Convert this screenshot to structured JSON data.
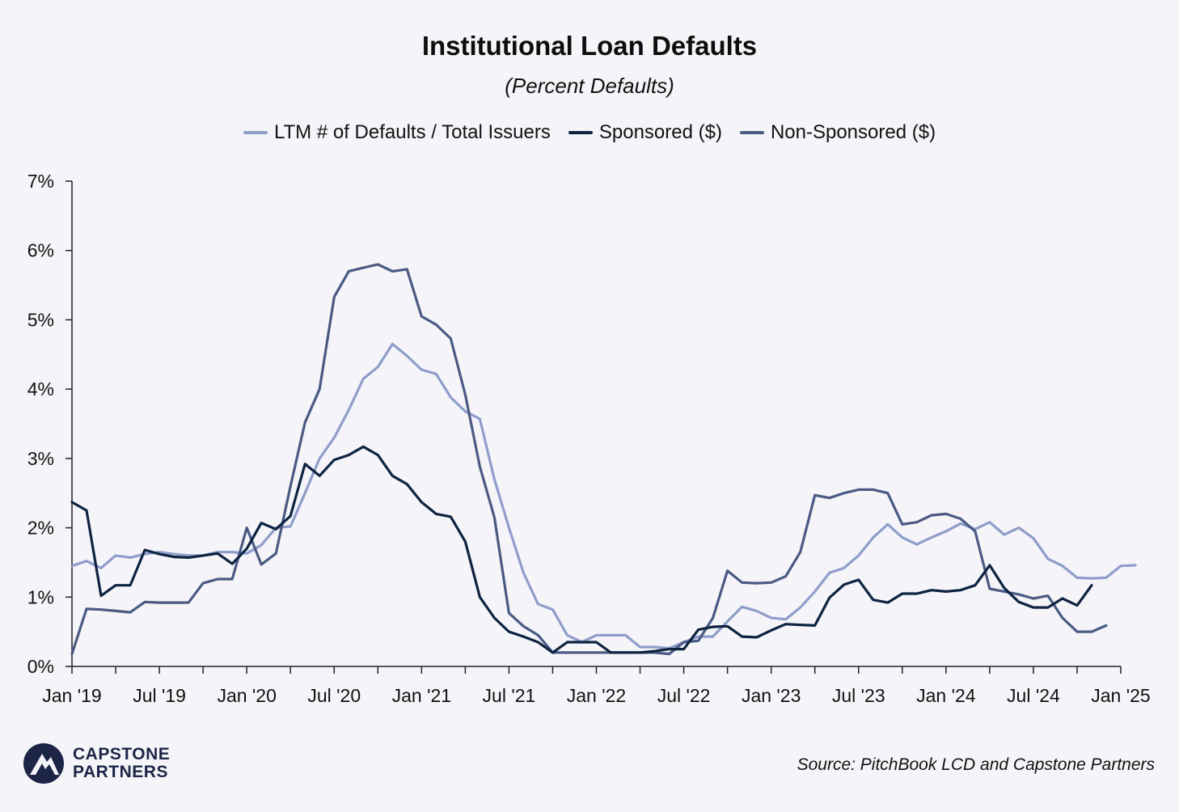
{
  "chart_data": {
    "type": "line",
    "title": "Institutional Loan Defaults",
    "subtitle": "(Percent Defaults)",
    "xlabel": "",
    "ylabel": "",
    "ylim": [
      0,
      7
    ],
    "yticks": [
      "0%",
      "1%",
      "2%",
      "3%",
      "4%",
      "5%",
      "6%",
      "7%"
    ],
    "xticks": [
      "Jan '19",
      "Jul '19",
      "Jan '20",
      "Jul '20",
      "Jan '21",
      "Jul '21",
      "Jan '22",
      "Jul '22",
      "Jan '23",
      "Jul '23",
      "Jan '24",
      "Jul '24",
      "Jan '25"
    ],
    "x_start": "Jan '19",
    "legend_position": "top-center",
    "series": [
      {
        "name": "LTM # of Defaults / Total Issuers",
        "color": "#8f9dca",
        "values": [
          1.45,
          1.52,
          1.42,
          1.6,
          1.57,
          1.62,
          1.65,
          1.62,
          1.6,
          1.6,
          1.65,
          1.65,
          1.63,
          1.75,
          2.0,
          2.02,
          2.5,
          3.0,
          3.3,
          3.7,
          4.15,
          4.32,
          4.65,
          4.48,
          4.28,
          4.22,
          3.88,
          3.68,
          3.57,
          2.7,
          2.0,
          1.35,
          0.9,
          0.82,
          0.45,
          0.35,
          0.45,
          0.45,
          0.45,
          0.28,
          0.28,
          0.26,
          0.35,
          0.43,
          0.43,
          0.65,
          0.86,
          0.8,
          0.7,
          0.68,
          0.85,
          1.08,
          1.35,
          1.42,
          1.6,
          1.86,
          2.05,
          1.86,
          1.76,
          1.86,
          1.95,
          2.06,
          1.98,
          2.08,
          1.9,
          2.0,
          1.85,
          1.55,
          1.45,
          1.28,
          1.27,
          1.28,
          1.45,
          1.46
        ]
      },
      {
        "name": "Sponsored ($)",
        "color": "#0e2340",
        "values": [
          2.37,
          2.25,
          1.02,
          1.17,
          1.17,
          1.68,
          1.62,
          1.58,
          1.57,
          1.6,
          1.63,
          1.48,
          1.7,
          2.07,
          1.98,
          2.17,
          2.92,
          2.75,
          2.98,
          3.05,
          3.17,
          3.05,
          2.75,
          2.63,
          2.37,
          2.2,
          2.16,
          1.8,
          1.0,
          0.7,
          0.5,
          0.43,
          0.35,
          0.2,
          0.35,
          0.35,
          0.35,
          0.2,
          0.2,
          0.2,
          0.22,
          0.25,
          0.25,
          0.53,
          0.57,
          0.58,
          0.43,
          0.42,
          0.52,
          0.61,
          0.6,
          0.59,
          0.99,
          1.18,
          1.25,
          0.96,
          0.92,
          1.05,
          1.05,
          1.1,
          1.08,
          1.1,
          1.17,
          1.46,
          1.13,
          0.93,
          0.85,
          0.85,
          0.98,
          0.88,
          1.17
        ]
      },
      {
        "name": "Non-Sponsored ($)",
        "color": "#4a5a83",
        "values": [
          0.18,
          0.83,
          0.82,
          0.8,
          0.78,
          0.93,
          0.92,
          0.92,
          0.92,
          1.2,
          1.26,
          1.26,
          2.0,
          1.47,
          1.63,
          2.6,
          3.52,
          4.0,
          5.33,
          5.7,
          5.75,
          5.8,
          5.7,
          5.73,
          5.05,
          4.93,
          4.73,
          3.92,
          2.88,
          2.15,
          0.77,
          0.58,
          0.45,
          0.2,
          0.2,
          0.2,
          0.2,
          0.2,
          0.2,
          0.2,
          0.2,
          0.18,
          0.35,
          0.37,
          0.7,
          1.38,
          1.21,
          1.2,
          1.21,
          1.3,
          1.65,
          2.47,
          2.43,
          2.5,
          2.55,
          2.55,
          2.5,
          2.05,
          2.08,
          2.18,
          2.2,
          2.13,
          1.95,
          1.12,
          1.08,
          1.04,
          0.98,
          1.02,
          0.7,
          0.5,
          0.5,
          0.59
        ]
      }
    ]
  },
  "footer": {
    "logo_line1": "CAPSTONE",
    "logo_line2": "PARTNERS",
    "source": "Source: PitchBook LCD and Capstone Partners"
  }
}
